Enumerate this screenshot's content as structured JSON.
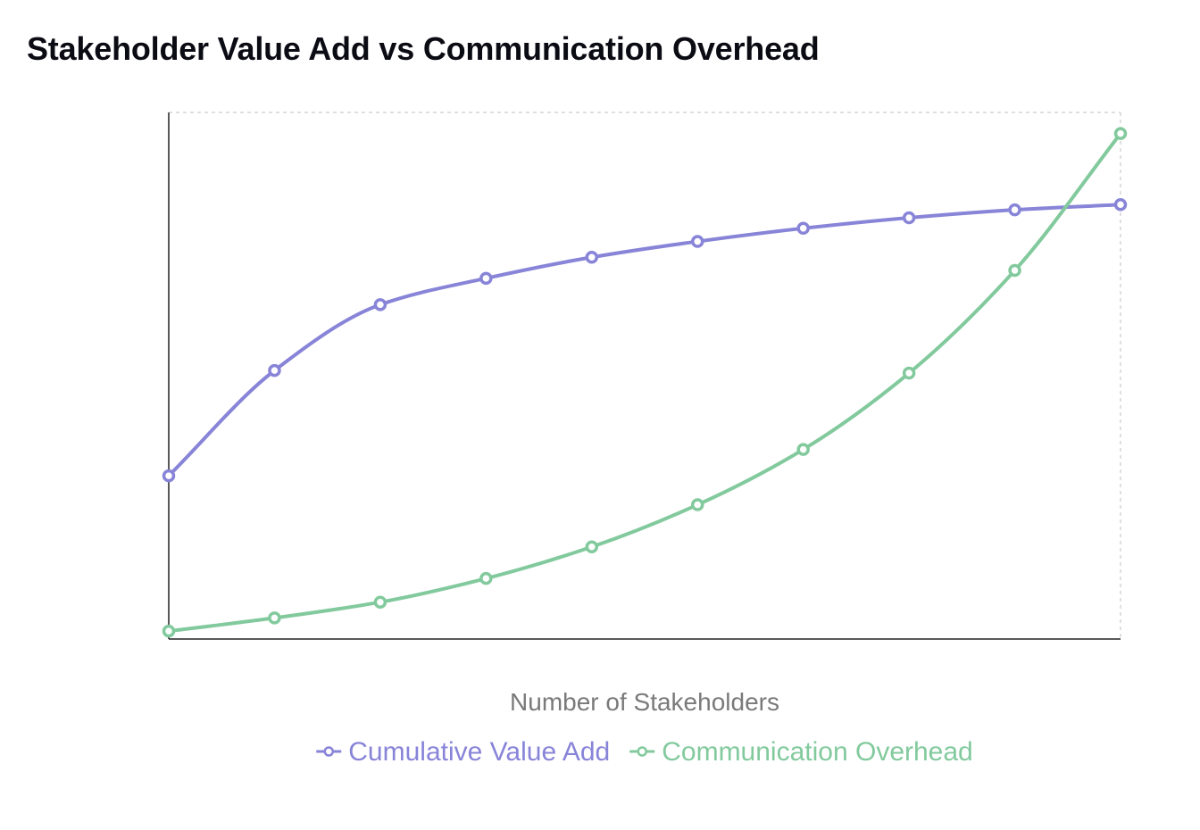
{
  "chart_data": {
    "type": "line",
    "title": "Stakeholder Value Add vs Communication Overhead",
    "xlabel": "Number of Stakeholders",
    "ylabel": "",
    "x": [
      1,
      2,
      3,
      4,
      5,
      6,
      7,
      8,
      9,
      10
    ],
    "ylim": [
      0,
      100
    ],
    "grid": false,
    "legend_position": "bottom",
    "series": [
      {
        "name": "Cumulative Value Add",
        "color": "#8884d8",
        "values": [
          31,
          51,
          63.5,
          68.5,
          72.5,
          75.5,
          78,
          80,
          81.5,
          82.5
        ]
      },
      {
        "name": "Communication Overhead",
        "color": "#82ca9d",
        "values": [
          1.5,
          4,
          7,
          11.5,
          17.5,
          25.5,
          36,
          50.5,
          70,
          96
        ]
      }
    ]
  }
}
